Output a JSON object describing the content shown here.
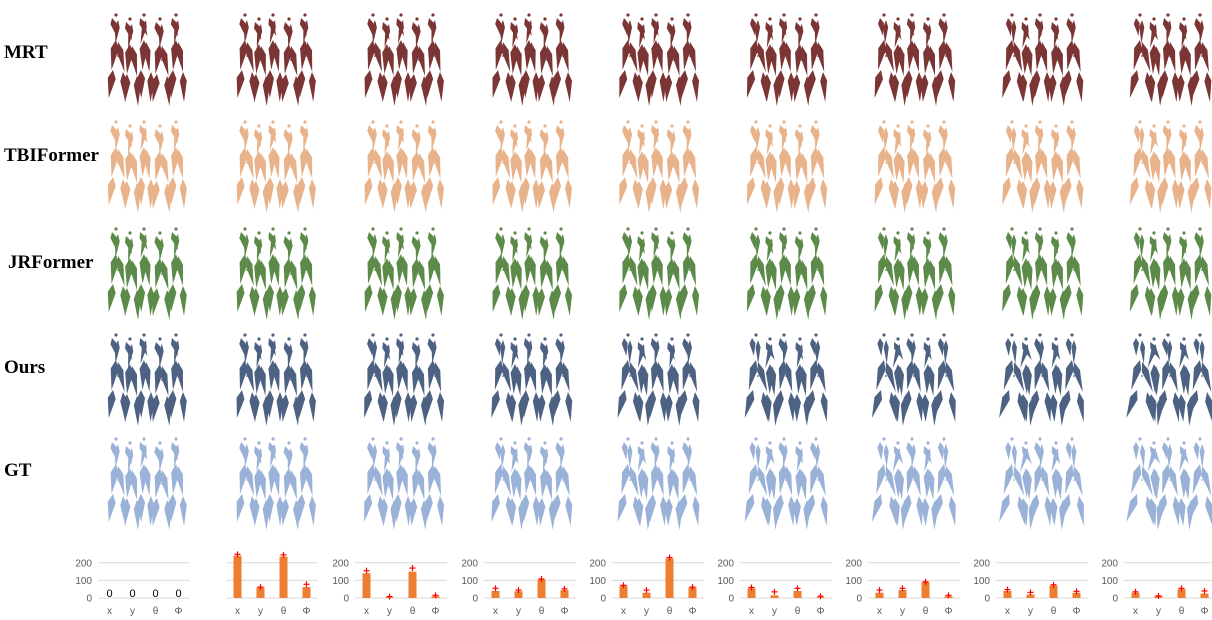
{
  "rows": [
    {
      "label": "MRT",
      "color": "#7b3535"
    },
    {
      "label": "TBIFormer",
      "color": "#e8b28a"
    },
    {
      "label": "JRFormer",
      "color": "#5c8a48"
    },
    {
      "label": "Ours",
      "color": "#4d6282"
    },
    {
      "label": "GT",
      "color": "#9ab2d8"
    }
  ],
  "frames": 9,
  "bar_color": "#ed7d31",
  "marker_color": "#ff0000",
  "chart_data": [
    {
      "type": "bar",
      "categories": [
        "x",
        "y",
        "θ",
        "Φ"
      ],
      "values": [
        0,
        0,
        0,
        0
      ],
      "markers": [],
      "data_labels": [
        "0",
        "0",
        "0",
        "0"
      ],
      "yticks": [
        0,
        100,
        200
      ],
      "ylim": [
        0,
        250
      ],
      "grid": true
    },
    {
      "type": "bar",
      "categories": [
        "x",
        "y",
        "θ",
        "Φ"
      ],
      "values": [
        240,
        60,
        235,
        62
      ],
      "markers": [
        248,
        62,
        245,
        78
      ],
      "data_labels": [],
      "yticks": [],
      "ylim": [
        0,
        250
      ],
      "grid": true
    },
    {
      "type": "bar",
      "categories": [
        "x",
        "y",
        "θ",
        "Φ"
      ],
      "values": [
        140,
        5,
        150,
        10
      ],
      "markers": [
        155,
        8,
        170,
        15
      ],
      "data_labels": [],
      "yticks": [
        0,
        100,
        200
      ],
      "ylim": [
        0,
        250
      ],
      "grid": true
    },
    {
      "type": "bar",
      "categories": [
        "x",
        "y",
        "θ",
        "Φ"
      ],
      "values": [
        40,
        38,
        105,
        45
      ],
      "markers": [
        55,
        45,
        108,
        52
      ],
      "data_labels": [],
      "yticks": [
        0,
        100,
        200
      ],
      "ylim": [
        0,
        250
      ],
      "grid": true
    },
    {
      "type": "bar",
      "categories": [
        "x",
        "y",
        "θ",
        "Φ"
      ],
      "values": [
        70,
        30,
        225,
        60
      ],
      "markers": [
        72,
        45,
        230,
        62
      ],
      "data_labels": [],
      "yticks": [
        0,
        100,
        200
      ],
      "ylim": [
        0,
        250
      ],
      "grid": true
    },
    {
      "type": "bar",
      "categories": [
        "x",
        "y",
        "θ",
        "Φ"
      ],
      "values": [
        55,
        15,
        40,
        5
      ],
      "markers": [
        60,
        35,
        55,
        10
      ],
      "data_labels": [],
      "yticks": [
        0,
        100,
        200
      ],
      "ylim": [
        0,
        250
      ],
      "grid": true
    },
    {
      "type": "bar",
      "categories": [
        "x",
        "y",
        "θ",
        "Φ"
      ],
      "values": [
        30,
        45,
        90,
        10
      ],
      "markers": [
        45,
        55,
        92,
        15
      ],
      "data_labels": [],
      "yticks": [
        0,
        100,
        200
      ],
      "ylim": [
        0,
        250
      ],
      "grid": true
    },
    {
      "type": "bar",
      "categories": [
        "x",
        "y",
        "θ",
        "Φ"
      ],
      "values": [
        40,
        20,
        70,
        30
      ],
      "markers": [
        48,
        32,
        75,
        38
      ],
      "data_labels": [],
      "yticks": [
        0,
        100,
        200
      ],
      "ylim": [
        0,
        250
      ],
      "grid": true
    },
    {
      "type": "bar",
      "categories": [
        "x",
        "y",
        "θ",
        "Φ"
      ],
      "values": [
        30,
        10,
        50,
        25
      ],
      "markers": [
        35,
        12,
        55,
        40
      ],
      "data_labels": [],
      "yticks": [
        0,
        100,
        200
      ],
      "ylim": [
        0,
        250
      ],
      "grid": true
    }
  ]
}
